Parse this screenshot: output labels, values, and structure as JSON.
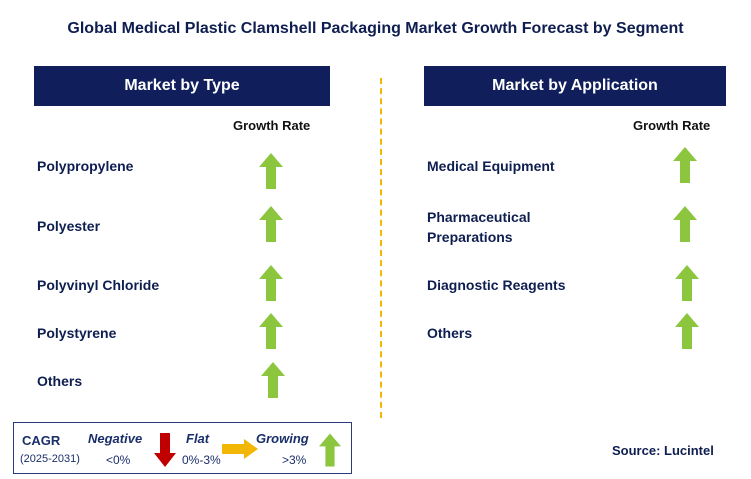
{
  "title": "Global Medical Plastic Clamshell Packaging Market Growth Forecast by Segment",
  "left_panel": {
    "header": "Market by Type",
    "growth_label": "Growth Rate",
    "items": [
      {
        "label": "Polypropylene",
        "trend": "growing"
      },
      {
        "label": "Polyester",
        "trend": "growing"
      },
      {
        "label": "Polyvinyl Chloride",
        "trend": "growing"
      },
      {
        "label": "Polystyrene",
        "trend": "growing"
      },
      {
        "label": "Others",
        "trend": "growing"
      }
    ]
  },
  "right_panel": {
    "header": "Market by Application",
    "growth_label": "Growth Rate",
    "items": [
      {
        "label": "Medical Equipment",
        "trend": "growing"
      },
      {
        "label": "Pharmaceutical Preparations",
        "trend": "growing"
      },
      {
        "label": "Diagnostic Reagents",
        "trend": "growing"
      },
      {
        "label": "Others",
        "trend": "growing"
      }
    ]
  },
  "legend": {
    "cagr": "CAGR",
    "period": "(2025-2031)",
    "negative": "Negative",
    "negative_range": "<0%",
    "flat": "Flat",
    "flat_range": "0%-3%",
    "growing": "Growing",
    "growing_range": ">3%"
  },
  "source": "Source: Lucintel",
  "colors": {
    "header_bg": "#101f5c",
    "arrow_up": "#8cc63f",
    "arrow_down": "#c00000",
    "arrow_flat": "#f2b705",
    "divider": "#f2b705"
  }
}
